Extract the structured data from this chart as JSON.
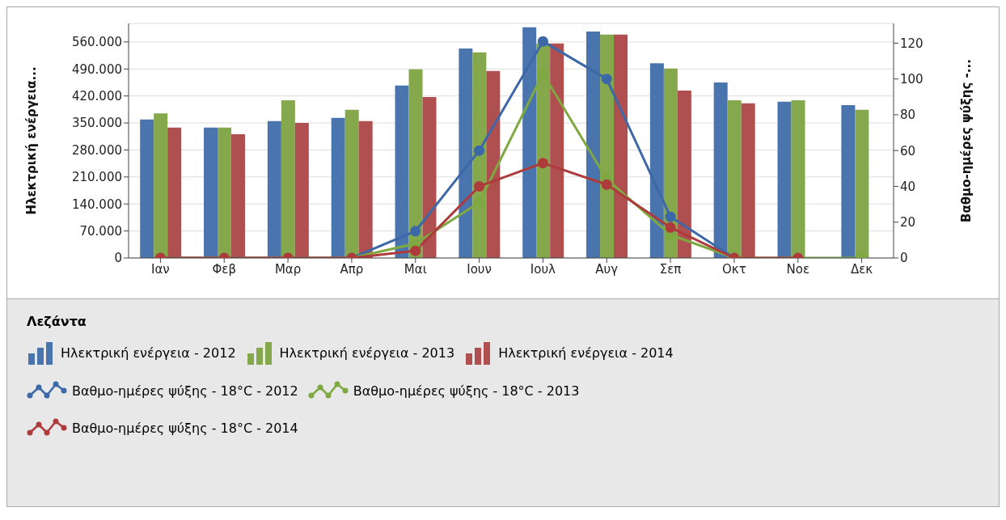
{
  "chart_data": {
    "type": "bar",
    "categories": [
      "Ιαν",
      "Φεβ",
      "Μαρ",
      "Απρ",
      "Μαι",
      "Ιουν",
      "Ιουλ",
      "Αυγ",
      "Σεπ",
      "Οκτ",
      "Νοε",
      "Δεκ"
    ],
    "ylabel": "Ηλεκτρική ενέργεια...",
    "y2label": "Βαθμο-ημέρες ψύξης -...",
    "legend_title": "Λεζάντα",
    "legend": "bottom",
    "grid": "y",
    "marker": "circle",
    "line_style": "solid",
    "ylim": [
      0,
      608000
    ],
    "yticks": [
      {
        "value": 0,
        "label": "0"
      },
      {
        "value": 70000,
        "label": "70.000"
      },
      {
        "value": 140000,
        "label": "140.000"
      },
      {
        "value": 210000,
        "label": "210.000"
      },
      {
        "value": 280000,
        "label": "280.000"
      },
      {
        "value": 350000,
        "label": "350.000"
      },
      {
        "value": 420000,
        "label": "420.000"
      },
      {
        "value": 490000,
        "label": "490.000"
      },
      {
        "value": 560000,
        "label": "560.000"
      }
    ],
    "y2lim": [
      0,
      131
    ],
    "y2ticks": [
      0,
      20,
      40,
      60,
      80,
      100,
      120
    ],
    "series": [
      {
        "name": "Ηλεκτρική ενέργεια - 2012",
        "color": "#4a74ad",
        "values": [
          359000,
          338000,
          355000,
          363000,
          447000,
          543000,
          598000,
          587000,
          505000,
          455000,
          405000,
          396000
        ]
      },
      {
        "name": "Ηλεκτρική ενέργεια - 2013",
        "color": "#86a84c",
        "values": [
          375000,
          338000,
          409000,
          384000,
          489000,
          533000,
          556000,
          579000,
          491000,
          409000,
          409000,
          384000
        ]
      },
      {
        "name": "Ηλεκτρική ενέργεια - 2014",
        "color": "#b04f4f",
        "values": [
          338000,
          321000,
          350000,
          355000,
          417000,
          485000,
          556000,
          579000,
          434000,
          401000,
          null,
          null
        ]
      },
      {
        "name": "Βαθμο-ημέρες ψύξης - 18°C - 2012",
        "type": "line",
        "axis": "y2",
        "color": "#3d68a8",
        "values": [
          0,
          0,
          0,
          0,
          15,
          60,
          121,
          100,
          23,
          0,
          null,
          null
        ]
      },
      {
        "name": "Βαθμο-ημέρες ψύξης - 18°C - 2013",
        "type": "line",
        "axis": "y2",
        "color": "#7ea840",
        "values": [
          0,
          0,
          0,
          0,
          8,
          31,
          103,
          44,
          13,
          0,
          0,
          0
        ]
      },
      {
        "name": "Βαθμο-ημέρες ψύξης - 18°C - 2014",
        "type": "line",
        "axis": "y2",
        "color": "#ae3b3b",
        "values": [
          0,
          0,
          0,
          0,
          4,
          40,
          53,
          41,
          17,
          0,
          0,
          null
        ]
      }
    ]
  }
}
